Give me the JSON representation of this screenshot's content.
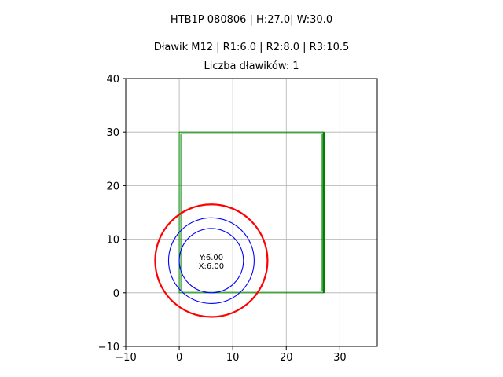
{
  "chart_data": {
    "type": "shape-plot",
    "title_lines": [
      "HTB1P 080806 | H:27.0| W:30.0",
      "Dławik M12 | R1:6.0 | R2:8.0 | R3:10.5",
      "Liczba dławików: 1"
    ],
    "xlim": [
      -10,
      37
    ],
    "ylim": [
      -10,
      40
    ],
    "x_ticks": [
      -10,
      0,
      10,
      20,
      30
    ],
    "y_ticks": [
      -10,
      0,
      10,
      20,
      30,
      40
    ],
    "grid": true,
    "rectangles": [
      {
        "x0": 0,
        "y0": 0,
        "x1": 27,
        "y1": 30,
        "color": "#008000"
      }
    ],
    "thick_edge": {
      "x": 27,
      "y0": 0,
      "y1": 30,
      "color": "#008000"
    },
    "circles": [
      {
        "cx": 6,
        "cy": 6,
        "r": 6.0,
        "color": "#0000ff"
      },
      {
        "cx": 6,
        "cy": 6,
        "r": 8.0,
        "color": "#0000ff"
      },
      {
        "cx": 6,
        "cy": 6,
        "r": 10.5,
        "color": "#ff0000"
      }
    ],
    "center_label": {
      "line1": "Y:6.00",
      "line2": "X:6.00",
      "x": 6,
      "y": 6
    }
  }
}
